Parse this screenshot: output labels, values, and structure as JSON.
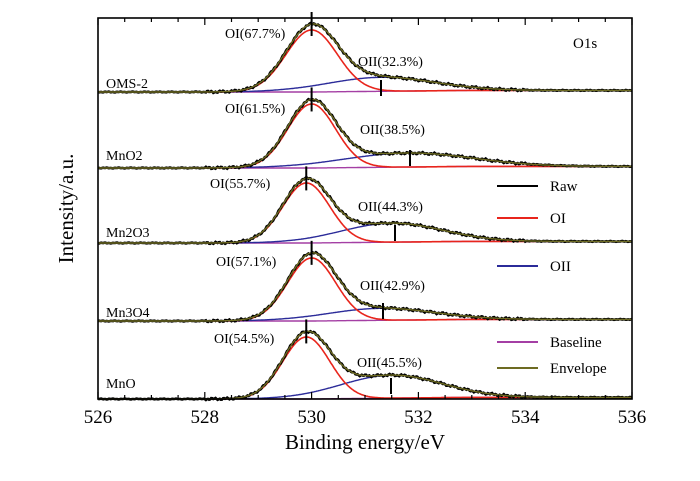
{
  "chart_data": {
    "type": "line",
    "title": "",
    "panel_label": "O1s",
    "xlabel": "Binding energy/eV",
    "ylabel": "Intensity/a.u.",
    "xlim": [
      526,
      536
    ],
    "x_ticks": [
      "526",
      "528",
      "530",
      "532",
      "534",
      "536"
    ],
    "panels": [
      {
        "sample": "OMS-2",
        "peaks": [
          {
            "label": "OI(67.7%)",
            "center": 530.0,
            "color": "#e8251c"
          },
          {
            "label": "OII(32.3%)",
            "center": 531.3,
            "color": "#2b2b99"
          }
        ]
      },
      {
        "sample": "MnO2",
        "peaks": [
          {
            "label": "OI(61.5%)",
            "center": 530.0,
            "color": "#e8251c"
          },
          {
            "label": "OII(38.5%)",
            "center": 531.8,
            "color": "#2b2b99"
          }
        ]
      },
      {
        "sample": "Mn2O3",
        "peaks": [
          {
            "label": "OI(55.7%)",
            "center": 529.9,
            "color": "#e8251c"
          },
          {
            "label": "OII(44.3%)",
            "center": 531.5,
            "color": "#2b2b99"
          }
        ]
      },
      {
        "sample": "Mn3O4",
        "peaks": [
          {
            "label": "OI(57.1%)",
            "center": 530.0,
            "color": "#e8251c"
          },
          {
            "label": "OII(42.9%)",
            "center": 531.3,
            "color": "#2b2b99"
          }
        ]
      },
      {
        "sample": "MnO",
        "peaks": [
          {
            "label": "OI(54.5%)",
            "center": 529.9,
            "color": "#e8251c"
          },
          {
            "label": "OII(45.5%)",
            "center": 531.5,
            "color": "#2b2b99"
          }
        ]
      }
    ],
    "legend": [
      {
        "name": "Raw",
        "color": "#000000"
      },
      {
        "name": "OI",
        "color": "#e8251c"
      },
      {
        "name": "OII",
        "color": "#2b2b99"
      },
      {
        "name": "Baseline",
        "color": "#a43fa4"
      },
      {
        "name": "Envelope",
        "color": "#6d6b22"
      }
    ],
    "grid": false
  }
}
